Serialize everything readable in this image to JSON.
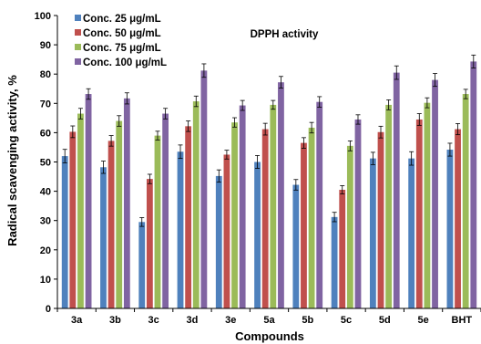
{
  "chart_data": {
    "type": "bar",
    "title": "DPPH activity",
    "xlabel": "Compounds",
    "ylabel": "Radical scavenging activity, %",
    "ylim": [
      0,
      100
    ],
    "yticks": [
      0,
      10,
      20,
      30,
      40,
      50,
      60,
      70,
      80,
      90,
      100
    ],
    "grid": false,
    "legend_position": "top-left",
    "error_bars": true,
    "categories": [
      "3a",
      "3b",
      "3c",
      "3d",
      "3e",
      "5a",
      "5b",
      "5c",
      "5d",
      "5e",
      "BHT"
    ],
    "series": [
      {
        "name": "Conc. 25 μg/mL",
        "color": "#4f81bd",
        "values": [
          52,
          48.2,
          29.5,
          53.5,
          45.2,
          50,
          42.2,
          31.2,
          51.2,
          51.2,
          54.2
        ],
        "errors": [
          2.3,
          2.1,
          1.5,
          2.3,
          2.1,
          2.2,
          1.8,
          1.6,
          2.1,
          2.3,
          2.2
        ]
      },
      {
        "name": "Conc. 50 μg/mL",
        "color": "#c0504d",
        "values": [
          60.3,
          57.2,
          44.2,
          62.2,
          52.5,
          61.2,
          56.5,
          40.5,
          60.2,
          64.5,
          61.2
        ],
        "errors": [
          2.0,
          1.8,
          1.6,
          1.8,
          1.5,
          2.0,
          1.8,
          1.4,
          2.0,
          2.0,
          1.9
        ]
      },
      {
        "name": "Conc. 75 μg/mL",
        "color": "#9bbb59",
        "values": [
          66.5,
          64,
          59,
          70.7,
          63.5,
          69.5,
          61.7,
          55.5,
          69.5,
          70.2,
          73.2
        ],
        "errors": [
          1.8,
          1.8,
          1.5,
          1.8,
          1.6,
          1.5,
          1.8,
          1.7,
          1.7,
          1.7,
          1.6
        ]
      },
      {
        "name": "Conc. 100 μg/mL",
        "color": "#8064a2",
        "values": [
          73.2,
          71.7,
          66.5,
          81.2,
          69.3,
          77.2,
          70.5,
          64.5,
          80.5,
          78,
          84.3
        ],
        "errors": [
          1.8,
          1.9,
          1.8,
          2.3,
          1.7,
          2.0,
          1.8,
          1.6,
          2.3,
          2.2,
          2.2
        ]
      }
    ]
  }
}
